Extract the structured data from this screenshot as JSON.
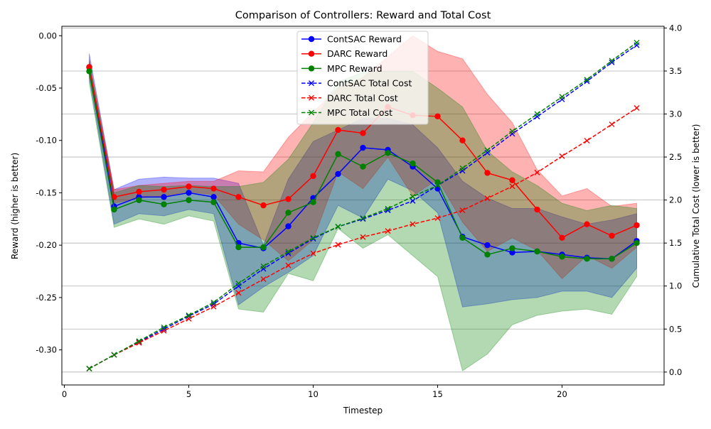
{
  "chart_data": {
    "type": "line",
    "title": "Comparison of Controllers: Reward and Total Cost",
    "xlabel": "Timestep",
    "ylabel_left": "Reward (higher is better)",
    "ylabel_right": "Cumulative Total Cost (lower is better)",
    "xlim": [
      -0.1,
      24.1
    ],
    "ylim_left": [
      -0.3335,
      0.009
    ],
    "ylim_right": [
      -0.15,
      4.02
    ],
    "x_ticks": [
      0,
      5,
      10,
      15,
      20
    ],
    "y_ticks_left": [
      0.0,
      -0.05,
      -0.1,
      -0.15,
      -0.2,
      -0.25,
      -0.3
    ],
    "y_ticks_right": [
      0.0,
      0.5,
      1.0,
      1.5,
      2.0,
      2.5,
      3.0,
      3.5,
      4.0
    ],
    "grid": "horizontal gridlines at right-axis ticks",
    "legend_position": "top-center",
    "x": [
      1,
      2,
      3,
      4,
      5,
      6,
      7,
      8,
      9,
      10,
      11,
      12,
      13,
      14,
      15,
      16,
      17,
      18,
      19,
      20,
      21,
      22,
      23
    ],
    "reward_series": [
      {
        "name": "ContSAC Reward",
        "color": "#0000ff",
        "values": [
          -0.03,
          -0.163,
          -0.154,
          -0.154,
          -0.15,
          -0.154,
          -0.198,
          -0.203,
          -0.182,
          -0.155,
          -0.132,
          -0.107,
          -0.109,
          -0.125,
          -0.146,
          -0.192,
          -0.2,
          -0.207,
          -0.206,
          -0.209,
          -0.212,
          -0.213,
          -0.196
        ],
        "band_upper": [
          -0.017,
          -0.147,
          -0.137,
          -0.135,
          -0.136,
          -0.136,
          -0.141,
          -0.2,
          -0.137,
          -0.101,
          -0.09,
          -0.079,
          -0.079,
          -0.085,
          -0.107,
          -0.139,
          -0.155,
          -0.165,
          -0.165,
          -0.173,
          -0.18,
          -0.176,
          -0.17
        ],
        "band_lower": [
          -0.04,
          -0.18,
          -0.17,
          -0.172,
          -0.166,
          -0.17,
          -0.257,
          -0.24,
          -0.226,
          -0.21,
          -0.162,
          -0.174,
          -0.137,
          -0.148,
          -0.169,
          -0.259,
          -0.256,
          -0.252,
          -0.25,
          -0.244,
          -0.244,
          -0.25,
          -0.222
        ]
      },
      {
        "name": "DARC Reward",
        "color": "#ff0000",
        "values": [
          -0.03,
          -0.154,
          -0.149,
          -0.147,
          -0.144,
          -0.146,
          -0.154,
          -0.162,
          -0.156,
          -0.134,
          -0.09,
          -0.093,
          -0.068,
          -0.076,
          -0.077,
          -0.1,
          -0.131,
          -0.138,
          -0.166,
          -0.193,
          -0.18,
          -0.191,
          -0.181
        ],
        "band_upper": [
          -0.023,
          -0.147,
          -0.143,
          -0.141,
          -0.139,
          -0.139,
          -0.129,
          -0.13,
          -0.097,
          -0.073,
          -0.05,
          -0.04,
          -0.02,
          0.0,
          -0.015,
          -0.022,
          -0.056,
          -0.083,
          -0.128,
          -0.153,
          -0.146,
          -0.163,
          -0.16
        ],
        "band_lower": [
          -0.037,
          -0.16,
          -0.155,
          -0.153,
          -0.149,
          -0.152,
          -0.18,
          -0.195,
          -0.215,
          -0.195,
          -0.13,
          -0.146,
          -0.116,
          -0.153,
          -0.137,
          -0.178,
          -0.206,
          -0.193,
          -0.205,
          -0.232,
          -0.21,
          -0.222,
          -0.202
        ]
      },
      {
        "name": "MPC Reward",
        "color": "#008000",
        "values": [
          -0.034,
          -0.166,
          -0.157,
          -0.161,
          -0.157,
          -0.159,
          -0.202,
          -0.202,
          -0.169,
          -0.159,
          -0.113,
          -0.125,
          -0.112,
          -0.122,
          -0.14,
          -0.193,
          -0.209,
          -0.203,
          -0.206,
          -0.211,
          -0.213,
          -0.213,
          -0.198
        ],
        "band_upper": [
          -0.024,
          -0.15,
          -0.143,
          -0.144,
          -0.143,
          -0.144,
          -0.144,
          -0.14,
          -0.118,
          -0.083,
          -0.044,
          -0.035,
          -0.034,
          -0.034,
          -0.05,
          -0.068,
          -0.11,
          -0.13,
          -0.143,
          -0.16,
          -0.167,
          -0.162,
          -0.165
        ],
        "band_lower": [
          -0.045,
          -0.183,
          -0.175,
          -0.18,
          -0.172,
          -0.177,
          -0.261,
          -0.264,
          -0.227,
          -0.234,
          -0.184,
          -0.203,
          -0.19,
          -0.21,
          -0.23,
          -0.32,
          -0.304,
          -0.276,
          -0.267,
          -0.263,
          -0.261,
          -0.266,
          -0.23
        ]
      }
    ],
    "cost_series": [
      {
        "name": "ContSAC Total Cost",
        "color": "#0000ff",
        "values": [
          0.04,
          0.2,
          0.35,
          0.5,
          0.65,
          0.79,
          1.0,
          1.2,
          1.38,
          1.55,
          1.69,
          1.78,
          1.88,
          1.99,
          2.17,
          2.34,
          2.55,
          2.77,
          2.97,
          3.17,
          3.38,
          3.6,
          3.8
        ]
      },
      {
        "name": "DARC Total Cost",
        "color": "#ff0000",
        "values": [
          0.04,
          0.2,
          0.34,
          0.48,
          0.62,
          0.76,
          0.92,
          1.08,
          1.24,
          1.38,
          1.48,
          1.57,
          1.64,
          1.72,
          1.79,
          1.88,
          2.02,
          2.16,
          2.32,
          2.51,
          2.69,
          2.88,
          3.07
        ]
      },
      {
        "name": "MPC Total Cost",
        "color": "#008000",
        "values": [
          0.04,
          0.2,
          0.36,
          0.52,
          0.66,
          0.81,
          1.03,
          1.23,
          1.4,
          1.56,
          1.69,
          1.79,
          1.9,
          2.04,
          2.17,
          2.37,
          2.58,
          2.8,
          3.0,
          3.2,
          3.4,
          3.62,
          3.83
        ]
      }
    ]
  }
}
